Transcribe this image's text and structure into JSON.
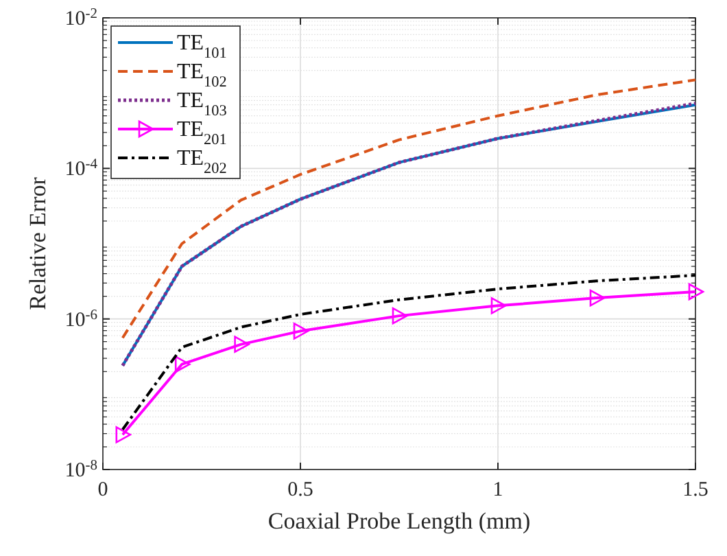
{
  "chart_data": {
    "type": "line",
    "xlabel": "Coaxial Probe Length (mm)",
    "ylabel": "Relative Error",
    "log": "y",
    "grid": true,
    "legend": "top left",
    "x": [
      0.05,
      0.2,
      0.35,
      0.5,
      0.75,
      1,
      1.25,
      1.5
    ],
    "xlim": [
      0,
      1.5
    ],
    "xticks": [
      0,
      0.5,
      1,
      1.5
    ],
    "ylim": [
      1e-08,
      0.01
    ],
    "yticks": [
      {
        "value": 1e-08,
        "label": "10$^{-8}$"
      },
      {
        "value": 1e-06,
        "label": "10$^{-6}$"
      },
      {
        "value": 0.0001,
        "label": "10$^{-4}$"
      },
      {
        "value": 0.01,
        "label": "10$^{-2}$"
      }
    ],
    "series": [
      {
        "name": "TE$_{101}$",
        "color": "#0072bd",
        "line_style": "solid",
        "marker": "none",
        "values": [
          2.4e-07,
          5e-06,
          1.7e-05,
          3.9e-05,
          0.00012,
          0.00025,
          0.00042,
          0.0007
        ]
      },
      {
        "name": "TE$_{102}$",
        "color": "#d95319",
        "line_style": "dashed",
        "marker": "none",
        "values": [
          5.6e-07,
          1e-05,
          3.8e-05,
          8.3e-05,
          0.00024,
          0.0005,
          0.00095,
          0.0015
        ]
      },
      {
        "name": "TE$_{103}$",
        "color": "#7e2f8e",
        "line_style": "dotted",
        "marker": "none",
        "values": [
          2.4e-07,
          5e-06,
          1.7e-05,
          3.9e-05,
          0.00012,
          0.00025,
          0.00043,
          0.00073
        ]
      },
      {
        "name": "TE$_{201}$",
        "color": "#ff00ff",
        "line_style": "solid",
        "marker": "triangle",
        "values": [
          2.9e-08,
          2.5e-07,
          4.6e-07,
          6.9e-07,
          1.1e-06,
          1.5e-06,
          1.9e-06,
          2.3e-06
        ]
      },
      {
        "name": "TE$_{202}$",
        "color": "#000000",
        "line_style": "dashdot",
        "marker": "none",
        "values": [
          3.4e-08,
          4.2e-07,
          7.8e-07,
          1.15e-06,
          1.8e-06,
          2.5e-06,
          3.2e-06,
          3.8e-06
        ]
      }
    ]
  }
}
